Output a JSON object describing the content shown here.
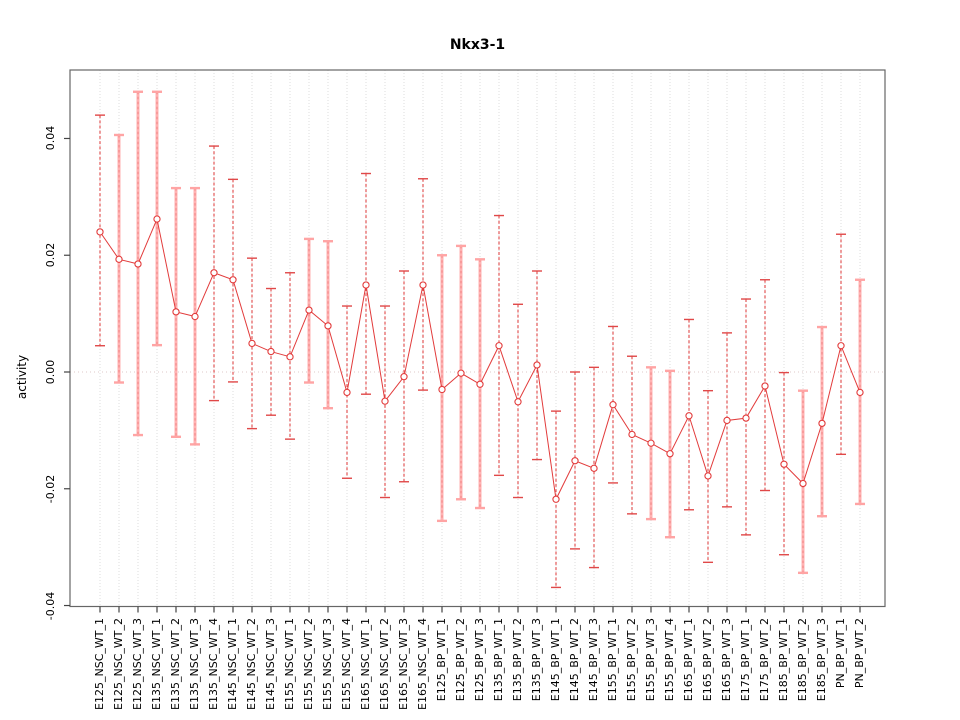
{
  "title": "Nkx3-1",
  "chart_data": {
    "type": "scatter",
    "title": "Nkx3-1",
    "ylabel": "activity",
    "xlabel": "",
    "ylim": [
      -0.0415,
      0.0517
    ],
    "yticks": [
      "0.04",
      "0.02",
      "0.00",
      "-0.02",
      "-0.04"
    ],
    "ytick_values": [
      0.04,
      0.02,
      0.0,
      -0.02,
      -0.04
    ],
    "grid": "vertical-dotted",
    "zero_line": true,
    "legend": "none",
    "colors": {
      "point": "#e23b3b",
      "line": "#e23b3b",
      "bar_red": "#e04848",
      "bar_pink": "#ffb2b2",
      "cap_pink": "#ffa4a4",
      "grid": "#dedede",
      "zero": "#dfc9c9",
      "frame": "#666666",
      "tick": "#444444"
    },
    "categories": [
      "E125_NSC_WT_1",
      "E125_NSC_WT_2",
      "E125_NSC_WT_3",
      "E135_NSC_WT_1",
      "E135_NSC_WT_2",
      "E135_NSC_WT_3",
      "E135_NSC_WT_4",
      "E145_NSC_WT_1",
      "E145_NSC_WT_2",
      "E145_NSC_WT_3",
      "E155_NSC_WT_1",
      "E155_NSC_WT_2",
      "E155_NSC_WT_3",
      "E155_NSC_WT_4",
      "E165_NSC_WT_1",
      "E165_NSC_WT_2",
      "E165_NSC_WT_3",
      "E165_NSC_WT_4",
      "E125_BP_WT_1",
      "E125_BP_WT_2",
      "E125_BP_WT_3",
      "E135_BP_WT_1",
      "E135_BP_WT_2",
      "E135_BP_WT_3",
      "E145_BP_WT_1",
      "E145_BP_WT_2",
      "E145_BP_WT_3",
      "E155_BP_WT_1",
      "E155_BP_WT_2",
      "E155_BP_WT_3",
      "E155_BP_WT_4",
      "E165_BP_WT_1",
      "E165_BP_WT_2",
      "E165_BP_WT_3",
      "E175_BP_WT_1",
      "E175_BP_WT_2",
      "E185_BP_WT_1",
      "E185_BP_WT_2",
      "E185_BP_WT_3",
      "PN_BP_WT_1",
      "PN_BP_WT_2"
    ],
    "series": [
      {
        "name": "activity",
        "values": [
          0.024,
          0.0193,
          0.0185,
          0.0262,
          0.0103,
          0.0095,
          0.017,
          0.0158,
          0.0049,
          0.0035,
          0.0026,
          0.0106,
          0.0079,
          -0.0035,
          0.0149,
          -0.005,
          -0.0008,
          0.0149,
          -0.003,
          -0.0002,
          -0.0021,
          0.0045,
          -0.0051,
          0.0012,
          -0.0218,
          -0.0152,
          -0.0165,
          -0.0056,
          -0.0107,
          -0.0122,
          -0.014,
          -0.0075,
          -0.0178,
          -0.0083,
          -0.0079,
          -0.0024,
          -0.0158,
          -0.0191,
          -0.0088,
          0.0045,
          -0.0035
        ],
        "ci_high": [
          0.044,
          0.0406,
          0.048,
          0.048,
          0.0315,
          0.0315,
          0.0387,
          0.033,
          0.0195,
          0.0143,
          0.017,
          0.0228,
          0.0224,
          0.0113,
          0.034,
          0.0113,
          0.0173,
          0.0331,
          0.02,
          0.0216,
          0.0193,
          0.0268,
          0.0116,
          0.0173,
          -0.0067,
          0.0,
          0.0008,
          0.0078,
          0.0027,
          0.0008,
          0.0002,
          0.009,
          -0.0032,
          0.0067,
          0.0125,
          0.0158,
          -0.0001,
          -0.0032,
          0.0077,
          0.0236,
          0.0158
        ],
        "ci_low": [
          0.0045,
          -0.0018,
          -0.0108,
          0.0046,
          -0.0111,
          -0.0124,
          -0.0049,
          -0.0017,
          -0.0097,
          -0.0074,
          -0.0115,
          -0.0018,
          -0.0062,
          -0.0182,
          -0.0038,
          -0.0215,
          -0.0188,
          -0.0031,
          -0.0255,
          -0.0218,
          -0.0233,
          -0.0177,
          -0.0215,
          -0.015,
          -0.0369,
          -0.0303,
          -0.0335,
          -0.019,
          -0.0243,
          -0.0252,
          -0.0283,
          -0.0236,
          -0.0326,
          -0.0231,
          -0.0279,
          -0.0203,
          -0.0313,
          -0.0344,
          -0.0247,
          -0.0141,
          -0.0226
        ],
        "bar_style": [
          "red",
          "pink",
          "pink",
          "pink",
          "pink",
          "pink",
          "red",
          "red",
          "red",
          "red",
          "red",
          "pink",
          "pink",
          "red",
          "red",
          "red",
          "red",
          "red",
          "pink",
          "pink",
          "pink",
          "red",
          "red",
          "red",
          "red",
          "red",
          "red",
          "red",
          "red",
          "pink",
          "pink",
          "red",
          "red",
          "red",
          "red",
          "red",
          "red",
          "pink",
          "pink",
          "red",
          "pink"
        ]
      }
    ]
  }
}
